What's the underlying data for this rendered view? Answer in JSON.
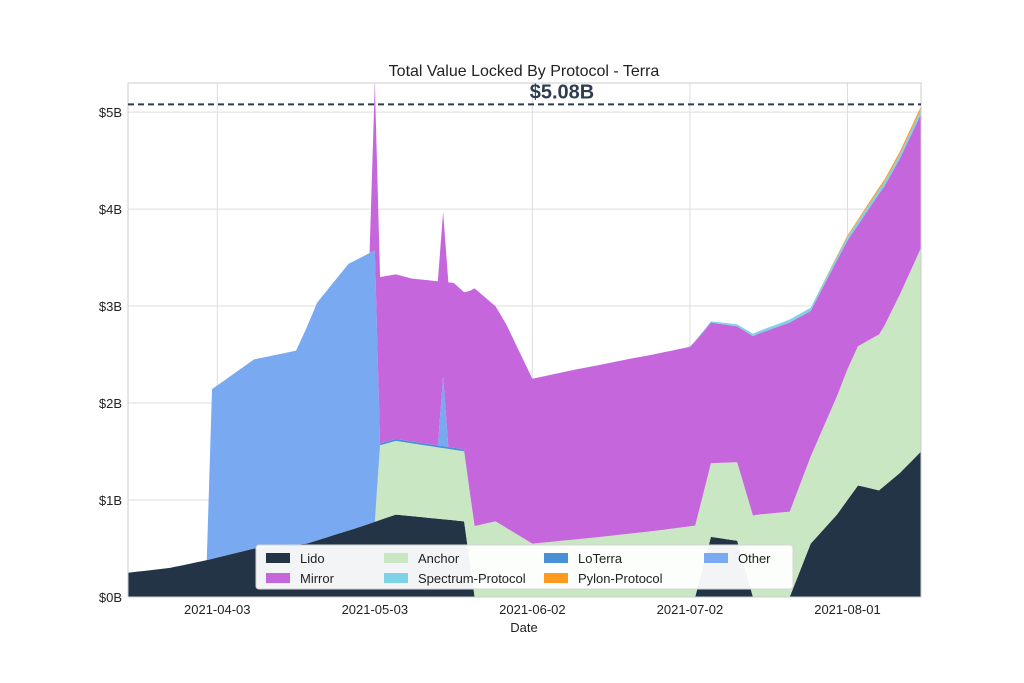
{
  "chart_data": {
    "type": "area",
    "stacked": true,
    "title": "Total Value Locked By Protocol - Terra",
    "xlabel": "Date",
    "ylabel": "",
    "x_start": "2021-03-17",
    "x_end": "2021-08-15",
    "ylim": [
      0,
      5.3
    ],
    "yticks": [
      0,
      1,
      2,
      3,
      4,
      5
    ],
    "ytick_labels": [
      "$0B",
      "$1B",
      "$2B",
      "$3B",
      "$4B",
      "$5B"
    ],
    "xticks": [
      "2021-04-03",
      "2021-05-03",
      "2021-06-02",
      "2021-07-02",
      "2021-08-01"
    ],
    "grid": true,
    "legend_position": "bottom-center",
    "annotation": {
      "label": "$5.08B",
      "value": 5.08
    },
    "series": [
      {
        "name": "Lido",
        "color": "#243447",
        "points": [
          [
            "2021-03-17",
            0.25
          ],
          [
            "2021-03-25",
            0.3
          ],
          [
            "2021-04-01",
            0.38
          ],
          [
            "2021-04-10",
            0.5
          ],
          [
            "2021-04-20",
            0.55
          ],
          [
            "2021-04-30",
            0.72
          ],
          [
            "2021-05-07",
            0.85
          ],
          [
            "2021-05-20",
            0.78
          ],
          [
            "2021-05-22",
            0.0
          ],
          [
            "2021-07-03",
            0.0
          ],
          [
            "2021-07-06",
            0.62
          ],
          [
            "2021-07-11",
            0.58
          ],
          [
            "2021-07-14",
            0.0
          ],
          [
            "2021-07-21",
            0.0
          ],
          [
            "2021-07-25",
            0.55
          ],
          [
            "2021-07-30",
            0.85
          ],
          [
            "2021-08-03",
            1.15
          ],
          [
            "2021-08-07",
            1.1
          ],
          [
            "2021-08-11",
            1.28
          ],
          [
            "2021-08-15",
            1.5
          ]
        ]
      },
      {
        "name": "Anchor",
        "color": "#c9e7c2",
        "points": [
          [
            "2021-03-17",
            0
          ],
          [
            "2021-05-03",
            0
          ],
          [
            "2021-05-04",
            0.77
          ],
          [
            "2021-05-10",
            0.75
          ],
          [
            "2021-05-21",
            0.72
          ],
          [
            "2021-05-26",
            0.78
          ],
          [
            "2021-06-02",
            0.55
          ],
          [
            "2021-06-15",
            0.62
          ],
          [
            "2021-06-25",
            0.68
          ],
          [
            "2021-07-05",
            0.75
          ],
          [
            "2021-07-15",
            0.85
          ],
          [
            "2021-07-25",
            0.9
          ],
          [
            "2021-08-01",
            1.35
          ],
          [
            "2021-08-08",
            1.65
          ],
          [
            "2021-08-15",
            2.1
          ]
        ]
      },
      {
        "name": "LoTerra",
        "color": "#4a90d9",
        "points": [
          [
            "2021-03-17",
            0
          ],
          [
            "2021-05-03",
            0
          ],
          [
            "2021-05-04",
            0.02
          ],
          [
            "2021-05-20",
            0.02
          ],
          [
            "2021-05-22",
            0
          ],
          [
            "2021-08-15",
            0
          ]
        ]
      },
      {
        "name": "Other",
        "color": "#79a9f0",
        "points": [
          [
            "2021-03-17",
            0
          ],
          [
            "2021-04-01",
            0
          ],
          [
            "2021-04-02",
            1.75
          ],
          [
            "2021-04-10",
            1.95
          ],
          [
            "2021-04-18",
            2.0
          ],
          [
            "2021-04-22",
            2.45
          ],
          [
            "2021-04-28",
            2.75
          ],
          [
            "2021-05-03",
            2.8
          ],
          [
            "2021-05-04",
            0
          ],
          [
            "2021-05-15",
            0
          ],
          [
            "2021-05-16",
            0.72
          ],
          [
            "2021-05-17",
            0
          ],
          [
            "2021-08-15",
            0
          ]
        ]
      },
      {
        "name": "Mirror",
        "color": "#c566dd",
        "points": [
          [
            "2021-03-17",
            0
          ],
          [
            "2021-05-02",
            0
          ],
          [
            "2021-05-03",
            1.72
          ],
          [
            "2021-05-10",
            1.68
          ],
          [
            "2021-05-18",
            1.7
          ],
          [
            "2021-05-20",
            1.62
          ],
          [
            "2021-05-22",
            2.45
          ],
          [
            "2021-05-28",
            2.1
          ],
          [
            "2021-06-02",
            1.7
          ],
          [
            "2021-06-10",
            1.75
          ],
          [
            "2021-06-20",
            1.8
          ],
          [
            "2021-07-02",
            1.85
          ],
          [
            "2021-07-03",
            1.9
          ],
          [
            "2021-07-06",
            1.45
          ],
          [
            "2021-07-11",
            1.4
          ],
          [
            "2021-07-14",
            1.85
          ],
          [
            "2021-07-21",
            1.95
          ],
          [
            "2021-07-25",
            1.5
          ],
          [
            "2021-07-30",
            1.4
          ],
          [
            "2021-08-03",
            1.25
          ],
          [
            "2021-08-07",
            1.45
          ],
          [
            "2021-08-11",
            1.4
          ],
          [
            "2021-08-15",
            1.38
          ]
        ]
      },
      {
        "name": "Spectrum-Protocol",
        "color": "#7fd3e6",
        "points": [
          [
            "2021-03-17",
            0
          ],
          [
            "2021-06-30",
            0
          ],
          [
            "2021-07-10",
            0.02
          ],
          [
            "2021-07-20",
            0.03
          ],
          [
            "2021-08-01",
            0.04
          ],
          [
            "2021-08-15",
            0.05
          ]
        ]
      },
      {
        "name": "Pylon-Protocol",
        "color": "#ff9a1f",
        "points": [
          [
            "2021-03-17",
            0
          ],
          [
            "2021-07-25",
            0
          ],
          [
            "2021-07-30",
            0.01
          ],
          [
            "2021-08-05",
            0.02
          ],
          [
            "2021-08-15",
            0.03
          ]
        ]
      }
    ]
  }
}
